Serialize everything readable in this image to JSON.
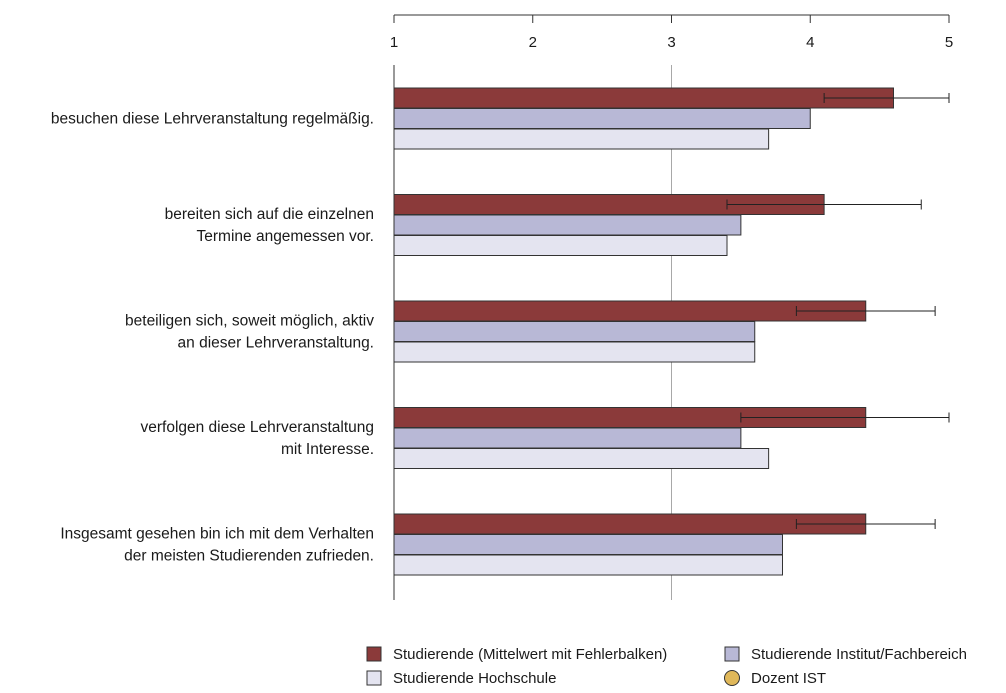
{
  "chart_data": {
    "type": "bar",
    "orientation": "horizontal",
    "xlim": [
      1,
      5
    ],
    "ticks": [
      "1",
      "2",
      "3",
      "4",
      "5"
    ],
    "tick_values": [
      1,
      2,
      3,
      4,
      5
    ],
    "categories": [
      [
        "besuchen diese Lehrveranstaltung regelmäßig."
      ],
      [
        "bereiten sich auf die einzelnen",
        "Termine angemessen vor."
      ],
      [
        "beteiligen sich, soweit möglich, aktiv",
        "an dieser Lehrveranstaltung."
      ],
      [
        "verfolgen diese Lehrveranstaltung",
        "mit Interesse."
      ],
      [
        "Insgesamt gesehen bin ich mit dem Verhalten",
        "der meisten Studierenden zufrieden."
      ]
    ],
    "series": [
      {
        "name": "Studierende (Mittelwert mit Fehlerbalken)",
        "color": "#8b3a3a",
        "values": [
          4.6,
          4.1,
          4.4,
          4.4,
          4.4
        ],
        "error_low": [
          4.1,
          3.4,
          3.9,
          3.5,
          3.9
        ],
        "error_high": [
          5.0,
          4.8,
          4.9,
          5.0,
          4.9
        ]
      },
      {
        "name": "Studierende Institut/Fachbereich",
        "color": "#b8b8d6",
        "values": [
          4.0,
          3.5,
          3.6,
          3.5,
          3.8
        ]
      },
      {
        "name": "Studierende Hochschule",
        "color": "#e4e4f0",
        "values": [
          3.7,
          3.4,
          3.6,
          3.7,
          3.8
        ]
      }
    ],
    "legend": {
      "placement": "bottom",
      "items": [
        {
          "label": "Studierende (Mittelwert mit Fehlerbalken)",
          "shape": "square",
          "color": "#8b3a3a"
        },
        {
          "label": "Studierende Institut/Fachbereich",
          "shape": "square",
          "color": "#b8b8d6"
        },
        {
          "label": "Studierende Hochschule",
          "shape": "square",
          "color": "#e4e4f0"
        },
        {
          "label": "Dozent IST",
          "shape": "circle",
          "color": "#e0b85a"
        }
      ]
    },
    "grid": "reference line at 3"
  }
}
